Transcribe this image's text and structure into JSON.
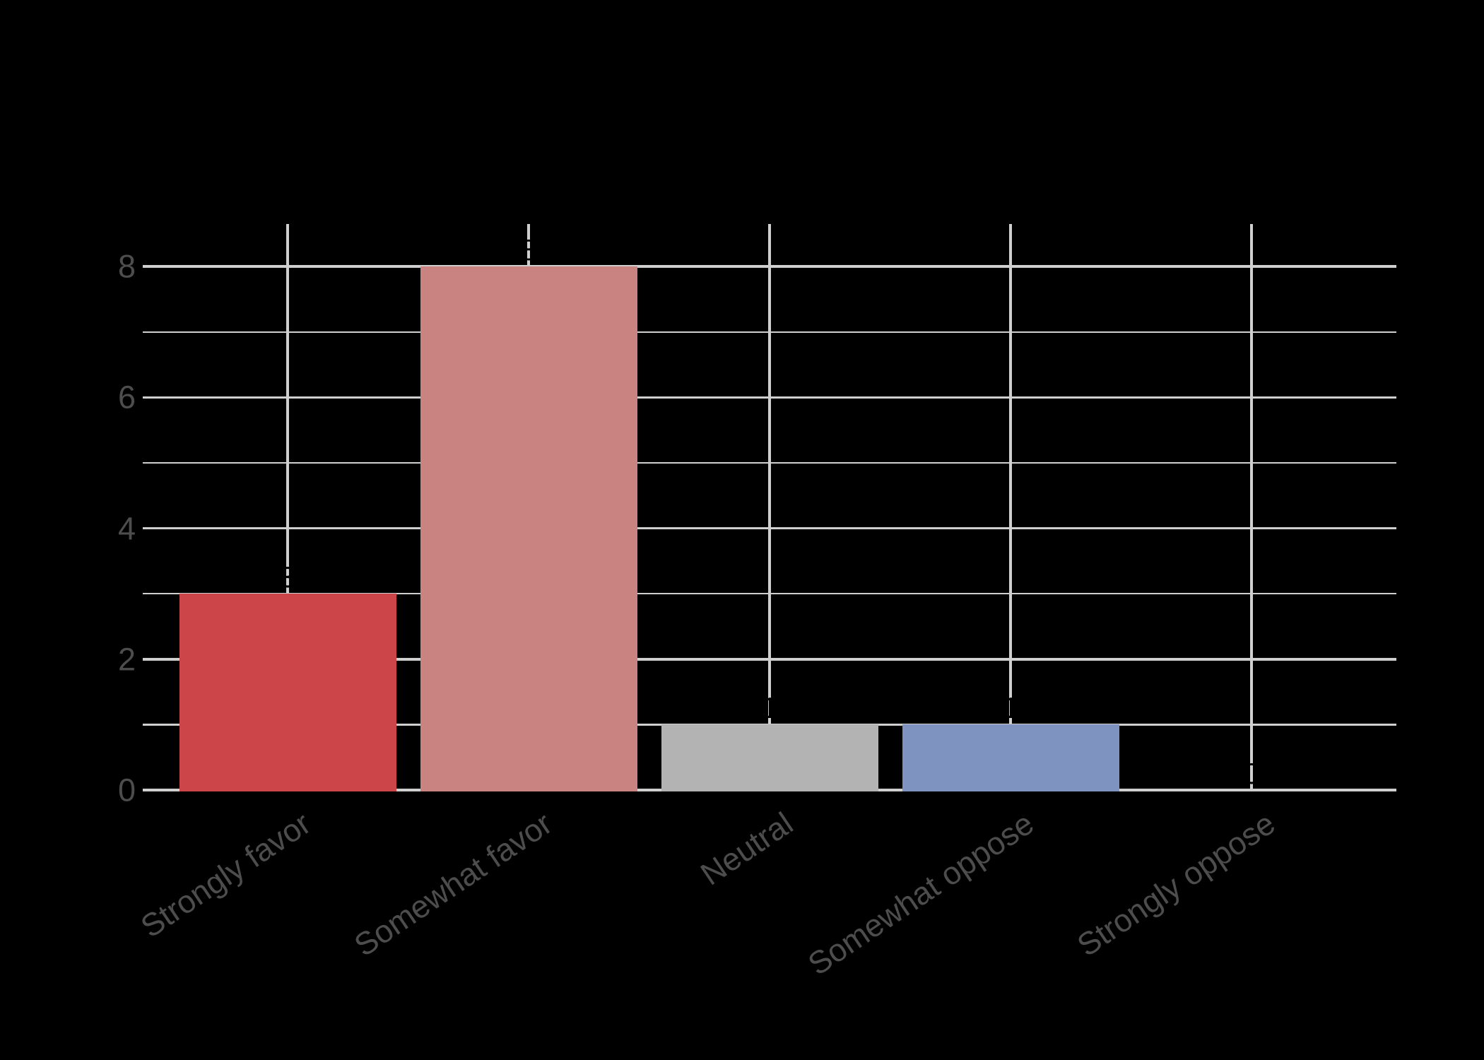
{
  "chart_data": {
    "type": "bar",
    "title": "",
    "categories": [
      "Strongly favor",
      "Somewhat favor",
      "Neutral",
      "Somewhat oppose",
      "Strongly oppose"
    ],
    "values": [
      3,
      8,
      1,
      1,
      0
    ],
    "value_labels": [
      "3",
      "8",
      "1",
      "1",
      "0"
    ],
    "bar_colors": [
      "#CB4549",
      "#C98380",
      "#B3B3B3",
      "#7E93BF",
      null
    ],
    "y_major_ticks": [
      0,
      2,
      4,
      6,
      8
    ],
    "y_major_tick_labels": [
      "0",
      "2",
      "4",
      "6",
      "8"
    ],
    "y_minor_ticks": [
      1,
      3,
      5,
      7
    ],
    "ylim": [
      0,
      8.65
    ],
    "xlabel": "",
    "ylabel": "",
    "grid": "major and minor horizontal, major vertical at category centers",
    "legend": "none"
  },
  "style_colors": {
    "background": "#000000",
    "gridline": "#CFCFCF",
    "axis_text": "#4D4D4D",
    "value_label_text": "#000000"
  }
}
